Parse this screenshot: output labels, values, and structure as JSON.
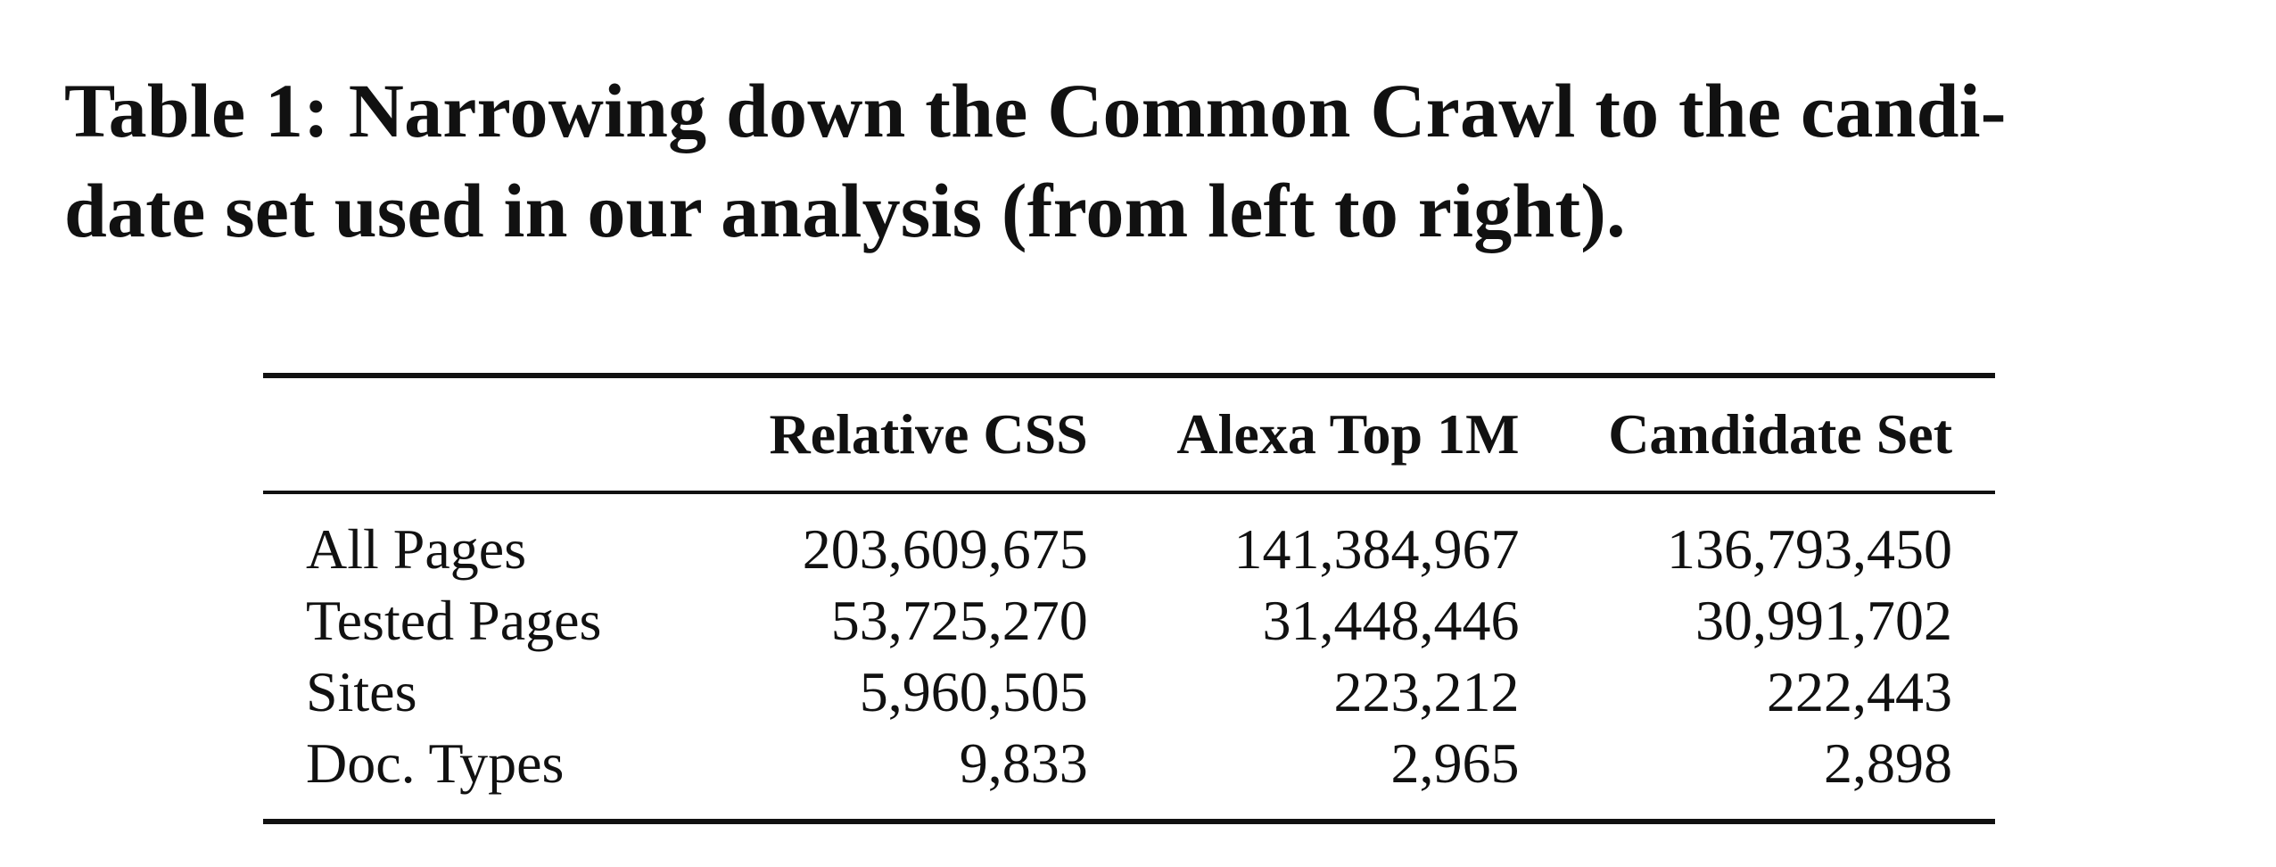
{
  "caption": {
    "line1": "Table 1: Narrowing down the Common Crawl to the candi-",
    "line2": "date set used in our analysis (from left to right)."
  },
  "table": {
    "headers": [
      "",
      "Relative CSS",
      "Alexa Top 1M",
      "Candidate Set"
    ],
    "rows": [
      {
        "label": "All Pages",
        "values": [
          "203,609,675",
          "141,384,967",
          "136,793,450"
        ]
      },
      {
        "label": "Tested Pages",
        "values": [
          "53,725,270",
          "31,448,446",
          "30,991,702"
        ]
      },
      {
        "label": "Sites",
        "values": [
          "5,960,505",
          "223,212",
          "222,443"
        ]
      },
      {
        "label": "Doc. Types",
        "values": [
          "9,833",
          "2,965",
          "2,898"
        ]
      }
    ]
  }
}
